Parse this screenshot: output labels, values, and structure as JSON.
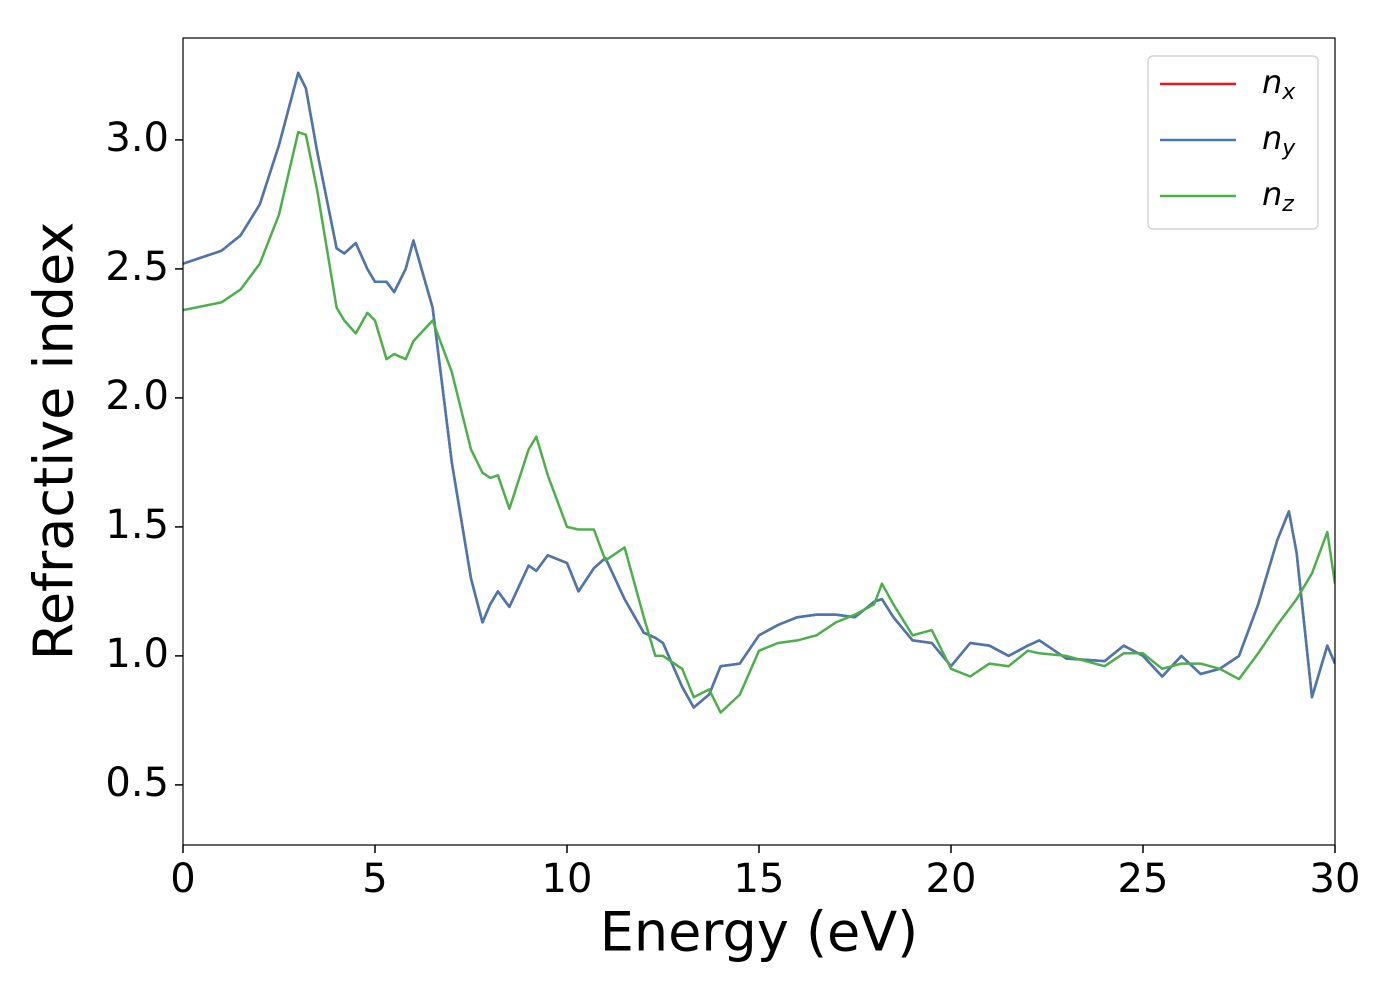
{
  "chart_data": {
    "type": "line",
    "x_label": "Energy (eV)",
    "y_label": "Refractive index",
    "x": [
      0,
      1,
      1.5,
      2,
      2.5,
      3,
      3.2,
      3.5,
      4,
      4.2,
      4.5,
      4.8,
      5,
      5.3,
      5.5,
      5.8,
      6,
      6.5,
      7,
      7.5,
      7.8,
      8,
      8.2,
      8.5,
      9,
      9.2,
      9.5,
      10,
      10.3,
      10.7,
      11,
      11.5,
      12,
      12.3,
      12.5,
      13,
      13.3,
      13.7,
      14,
      14.5,
      15,
      15.5,
      16,
      16.5,
      17,
      17.5,
      18,
      18.2,
      18.5,
      19,
      19.5,
      20,
      20.5,
      21,
      21.5,
      22,
      22.3,
      23,
      24,
      24.5,
      25,
      25.5,
      26,
      26.5,
      27,
      27.5,
      28,
      28.5,
      28.8,
      29,
      29.4,
      29.8,
      30
    ],
    "series": [
      {
        "name": "nx",
        "color": "#e41a1c",
        "values": [
          2.52,
          2.57,
          2.63,
          2.75,
          2.98,
          3.26,
          3.2,
          2.95,
          2.58,
          2.56,
          2.6,
          2.5,
          2.45,
          2.45,
          2.41,
          2.5,
          2.61,
          2.35,
          1.75,
          1.3,
          1.13,
          1.2,
          1.25,
          1.19,
          1.35,
          1.33,
          1.39,
          1.36,
          1.25,
          1.34,
          1.38,
          1.22,
          1.09,
          1.07,
          1.05,
          0.88,
          0.8,
          0.85,
          0.96,
          0.97,
          1.08,
          1.12,
          1.15,
          1.16,
          1.16,
          1.15,
          1.21,
          1.22,
          1.15,
          1.06,
          1.05,
          0.96,
          1.05,
          1.04,
          1.0,
          1.04,
          1.06,
          0.99,
          0.98,
          1.04,
          1.0,
          0.92,
          1.0,
          0.93,
          0.95,
          1.0,
          1.2,
          1.45,
          1.56,
          1.4,
          0.84,
          1.04,
          0.97
        ]
      },
      {
        "name": "ny",
        "color": "#4878b0",
        "values": [
          2.52,
          2.57,
          2.63,
          2.75,
          2.98,
          3.26,
          3.2,
          2.95,
          2.58,
          2.56,
          2.6,
          2.5,
          2.45,
          2.45,
          2.41,
          2.5,
          2.61,
          2.35,
          1.75,
          1.3,
          1.13,
          1.2,
          1.25,
          1.19,
          1.35,
          1.33,
          1.39,
          1.36,
          1.25,
          1.34,
          1.38,
          1.22,
          1.09,
          1.07,
          1.05,
          0.88,
          0.8,
          0.85,
          0.96,
          0.97,
          1.08,
          1.12,
          1.15,
          1.16,
          1.16,
          1.15,
          1.21,
          1.22,
          1.15,
          1.06,
          1.05,
          0.96,
          1.05,
          1.04,
          1.0,
          1.04,
          1.06,
          0.99,
          0.98,
          1.04,
          1.0,
          0.92,
          1.0,
          0.93,
          0.95,
          1.0,
          1.2,
          1.45,
          1.56,
          1.4,
          0.84,
          1.04,
          0.97
        ]
      },
      {
        "name": "nz",
        "color": "#4daf4a",
        "values": [
          2.34,
          2.37,
          2.42,
          2.52,
          2.71,
          3.03,
          3.02,
          2.8,
          2.35,
          2.3,
          2.25,
          2.33,
          2.3,
          2.15,
          2.17,
          2.15,
          2.22,
          2.3,
          2.1,
          1.8,
          1.71,
          1.69,
          1.7,
          1.57,
          1.8,
          1.85,
          1.7,
          1.5,
          1.49,
          1.49,
          1.37,
          1.42,
          1.15,
          1.0,
          1.0,
          0.95,
          0.84,
          0.87,
          0.78,
          0.85,
          1.02,
          1.05,
          1.06,
          1.08,
          1.13,
          1.16,
          1.2,
          1.28,
          1.2,
          1.08,
          1.1,
          0.95,
          0.92,
          0.97,
          0.96,
          1.02,
          1.01,
          1.0,
          0.96,
          1.01,
          1.01,
          0.95,
          0.97,
          0.97,
          0.95,
          0.91,
          1.01,
          1.12,
          1.18,
          1.22,
          1.32,
          1.48,
          1.28
        ]
      }
    ],
    "xlim": [
      0,
      30
    ],
    "xticks": [
      0,
      5,
      10,
      15,
      20,
      25,
      30
    ],
    "ylim": [
      0.267,
      3.395
    ],
    "yticks": [
      0.5,
      {
        "value": 1,
        "label": "1.0"
      },
      1.5,
      {
        "value": 2,
        "label": "2.0"
      },
      2.5,
      {
        "value": 3,
        "label": "3.0"
      }
    ],
    "legend": "upper right",
    "grid": false
  }
}
